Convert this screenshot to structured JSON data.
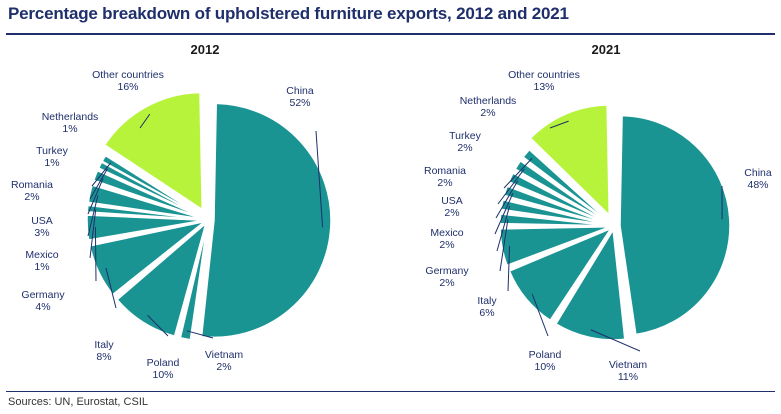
{
  "title": "Percentage breakdown of upholstered furniture exports, 2012 and 2021",
  "source": "Sources: UN, Eurostat, CSIL",
  "colors": {
    "teal": "#1a9393",
    "lime": "#b7f33a",
    "line": "#1f2f6b",
    "title": "#1f2f6b"
  },
  "chart_data": [
    {
      "type": "pie",
      "title": "2012",
      "slices": [
        {
          "label": "China",
          "value": 52,
          "display": "52%"
        },
        {
          "label": "Vietnam",
          "value": 2,
          "display": "2%"
        },
        {
          "label": "Poland",
          "value": 10,
          "display": "10%"
        },
        {
          "label": "Italy",
          "value": 8,
          "display": "8%"
        },
        {
          "label": "Germany",
          "value": 4,
          "display": "4%"
        },
        {
          "label": "Mexico",
          "value": 1,
          "display": "1%"
        },
        {
          "label": "USA",
          "value": 3,
          "display": "3%"
        },
        {
          "label": "Romania",
          "value": 2,
          "display": "2%"
        },
        {
          "label": "Turkey",
          "value": 1,
          "display": "1%"
        },
        {
          "label": "Netherlands",
          "value": 1,
          "display": "1%"
        },
        {
          "label": "Other countries",
          "value": 16,
          "display": "16%",
          "highlight": true
        }
      ]
    },
    {
      "type": "pie",
      "title": "2021",
      "slices": [
        {
          "label": "China",
          "value": 48,
          "display": "48%"
        },
        {
          "label": "Vietnam",
          "value": 11,
          "display": "11%"
        },
        {
          "label": "Poland",
          "value": 10,
          "display": "10%"
        },
        {
          "label": "Italy",
          "value": 6,
          "display": "6%"
        },
        {
          "label": "Germany",
          "value": 2,
          "display": "2%"
        },
        {
          "label": "Mexico",
          "value": 2,
          "display": "2%"
        },
        {
          "label": "USA",
          "value": 2,
          "display": "2%"
        },
        {
          "label": "Romania",
          "value": 2,
          "display": "2%"
        },
        {
          "label": "Turkey",
          "value": 2,
          "display": "2%"
        },
        {
          "label": "Netherlands",
          "value": 2,
          "display": "2%"
        },
        {
          "label": "Other countries",
          "value": 13,
          "display": "13%",
          "highlight": true
        }
      ]
    }
  ]
}
